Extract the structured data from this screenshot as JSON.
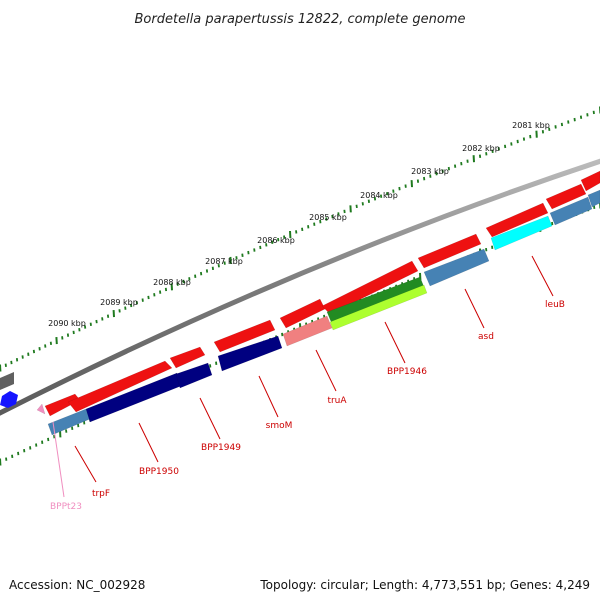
{
  "title": "Bordetella parapertussis 12822, complete genome",
  "footer": {
    "accession": "Accession: NC_002928",
    "topology": "Topology: circular; Length: 4,773,551 bp; Genes: 4,249"
  },
  "ticks": [
    "2081 kbp",
    "2082 kbp",
    "2083 kbp",
    "2084 kbp",
    "2085 kbp",
    "2086 kbp",
    "2087 kbp",
    "2088 kbp",
    "2089 kbp",
    "2090 kbp"
  ],
  "gene_labels": [
    {
      "name": "leuB",
      "color": "#cc0000"
    },
    {
      "name": "asd",
      "color": "#cc0000"
    },
    {
      "name": "BPP1946",
      "color": "#cc0000"
    },
    {
      "name": "truA",
      "color": "#cc0000"
    },
    {
      "name": "smoM",
      "color": "#cc0000"
    },
    {
      "name": "BPP1949",
      "color": "#cc0000"
    },
    {
      "name": "BPP1950",
      "color": "#cc0000"
    },
    {
      "name": "trpF",
      "color": "#cc0000"
    },
    {
      "name": "BPPt23",
      "color": "#f08fc0"
    }
  ],
  "colors": {
    "cds": "#ee1111",
    "cds_dark": "#000080",
    "gene_blue": "#4682b4",
    "light_red": "#f08080",
    "green": "#228b22",
    "lime": "#adff2f",
    "cyan": "#00ffff",
    "backbone": "#808080",
    "ticks": "#1f7a1f",
    "trna": "#f08fc0"
  }
}
